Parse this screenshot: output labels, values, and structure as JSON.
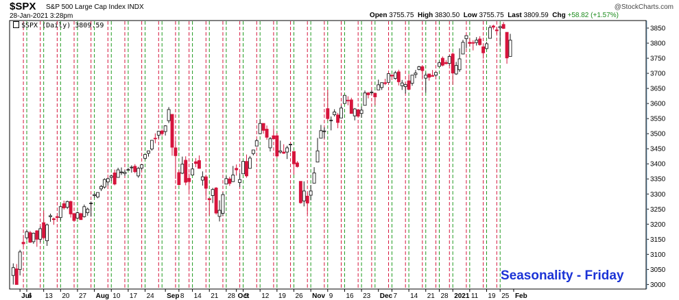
{
  "header": {
    "ticker": "$SPX",
    "name": "S&P 500 Large Cap Index  INDX",
    "date": "28-Jan-2021 3:28pm",
    "branding": "@StockCharts.com",
    "ohlc": {
      "open_label": "Open",
      "open": "3755.75",
      "high_label": "High",
      "high": "3830.50",
      "low_label": "Low",
      "low": "3755.75",
      "last_label": "Last",
      "last": "3809.59",
      "chg_label": "Chg",
      "chg": "+58.82 (+1.57%)"
    }
  },
  "legend": {
    "label": "$SPX (Daily) 3809.59"
  },
  "annotation": "Seasonality - Friday",
  "colors": {
    "up": "#1a1a1a",
    "down": "#d6143c",
    "monday_line": "#1e9a1e",
    "friday_line": "#d6143c",
    "caption": "#1b33d6",
    "price_axis_line": "#8ab4d6"
  },
  "chart_data": {
    "type": "candlestick",
    "title": "$SPX S&P 500 Large Cap Index",
    "series_name": "$SPX (Daily)",
    "ylim": [
      2985,
      3875
    ],
    "y_ticks": [
      3000,
      3050,
      3100,
      3150,
      3200,
      3250,
      3300,
      3350,
      3400,
      3450,
      3500,
      3550,
      3600,
      3650,
      3700,
      3750,
      3800,
      3850
    ],
    "x_ticks": [
      {
        "label": "Jul",
        "date": "2020-07-01",
        "bold": true
      },
      {
        "label": "6",
        "date": "2020-07-06"
      },
      {
        "label": "13",
        "date": "2020-07-13"
      },
      {
        "label": "20",
        "date": "2020-07-20"
      },
      {
        "label": "27",
        "date": "2020-07-27"
      },
      {
        "label": "Aug",
        "date": "2020-08-03",
        "bold": true
      },
      {
        "label": "10",
        "date": "2020-08-10"
      },
      {
        "label": "17",
        "date": "2020-08-17"
      },
      {
        "label": "24",
        "date": "2020-08-24"
      },
      {
        "label": "Sep",
        "date": "2020-09-01",
        "bold": true
      },
      {
        "label": "8",
        "date": "2020-09-08"
      },
      {
        "label": "14",
        "date": "2020-09-14"
      },
      {
        "label": "21",
        "date": "2020-09-21"
      },
      {
        "label": "28",
        "date": "2020-09-28"
      },
      {
        "label": "Oct",
        "date": "2020-10-01",
        "bold": true
      },
      {
        "label": "5",
        "date": "2020-10-05"
      },
      {
        "label": "12",
        "date": "2020-10-12"
      },
      {
        "label": "19",
        "date": "2020-10-19"
      },
      {
        "label": "26",
        "date": "2020-10-26"
      },
      {
        "label": "Nov",
        "date": "2020-11-02",
        "bold": true
      },
      {
        "label": "9",
        "date": "2020-11-09"
      },
      {
        "label": "16",
        "date": "2020-11-16"
      },
      {
        "label": "23",
        "date": "2020-11-23"
      },
      {
        "label": "Dec",
        "date": "2020-12-01",
        "bold": true
      },
      {
        "label": "7",
        "date": "2020-12-07"
      },
      {
        "label": "14",
        "date": "2020-12-14"
      },
      {
        "label": "21",
        "date": "2020-12-21"
      },
      {
        "label": "28",
        "date": "2020-12-28"
      },
      {
        "label": "2021",
        "date": "2021-01-04",
        "bold": true
      },
      {
        "label": "11",
        "date": "2021-01-11"
      },
      {
        "label": "19",
        "date": "2021-01-19"
      },
      {
        "label": "25",
        "date": "2021-01-25"
      },
      {
        "label": "Feb",
        "date": "2021-02-01",
        "bold": true
      }
    ],
    "monday_lines": [
      "2020-07-06",
      "2020-07-13",
      "2020-07-20",
      "2020-07-27",
      "2020-08-03",
      "2020-08-10",
      "2020-08-17",
      "2020-08-24",
      "2020-08-31",
      "2020-09-08",
      "2020-09-14",
      "2020-09-21",
      "2020-09-28",
      "2020-10-05",
      "2020-10-12",
      "2020-10-19",
      "2020-10-26",
      "2020-11-02",
      "2020-11-09",
      "2020-11-16",
      "2020-11-23",
      "2020-11-30",
      "2020-12-07",
      "2020-12-14",
      "2020-12-21",
      "2020-12-28",
      "2021-01-04",
      "2021-01-11",
      "2021-01-19",
      "2021-01-25"
    ],
    "friday_lines": [
      "2020-07-02",
      "2020-07-10",
      "2020-07-17",
      "2020-07-24",
      "2020-07-31",
      "2020-08-07",
      "2020-08-14",
      "2020-08-21",
      "2020-08-28",
      "2020-09-04",
      "2020-09-11",
      "2020-09-18",
      "2020-09-25",
      "2020-10-02",
      "2020-10-09",
      "2020-10-16",
      "2020-10-23",
      "2020-10-30",
      "2020-11-06",
      "2020-11-13",
      "2020-11-20",
      "2020-11-27",
      "2020-12-04",
      "2020-12-11",
      "2020-12-18",
      "2020-12-24",
      "2020-12-31",
      "2021-01-08",
      "2021-01-15",
      "2021-01-22"
    ],
    "candles": [
      [
        "2020-06-29",
        3030,
        3070,
        3000,
        3056
      ],
      [
        "2020-06-30",
        3052,
        3068,
        3000,
        3000
      ],
      [
        "2020-07-01",
        3050,
        3115,
        3030,
        3108
      ],
      [
        "2020-07-02",
        3140,
        3160,
        3125,
        3135
      ],
      [
        "2020-07-06",
        3155,
        3182,
        3148,
        3175
      ],
      [
        "2020-07-07",
        3172,
        3178,
        3138,
        3140
      ],
      [
        "2020-07-08",
        3142,
        3172,
        3135,
        3170
      ],
      [
        "2020-07-09",
        3178,
        3180,
        3125,
        3150
      ],
      [
        "2020-07-10",
        3150,
        3192,
        3140,
        3185
      ],
      [
        "2020-07-13",
        3205,
        3245,
        3148,
        3155
      ],
      [
        "2020-07-14",
        3145,
        3202,
        3128,
        3198
      ],
      [
        "2020-07-15",
        3225,
        3235,
        3208,
        3228
      ],
      [
        "2020-07-16",
        3218,
        3222,
        3198,
        3215
      ],
      [
        "2020-07-17",
        3225,
        3230,
        3210,
        3222
      ],
      [
        "2020-07-20",
        3222,
        3262,
        3212,
        3258
      ],
      [
        "2020-07-21",
        3268,
        3278,
        3248,
        3254
      ],
      [
        "2020-07-22",
        3256,
        3278,
        3250,
        3275
      ],
      [
        "2020-07-23",
        3275,
        3278,
        3222,
        3234
      ],
      [
        "2020-07-24",
        3235,
        3238,
        3212,
        3212
      ],
      [
        "2020-07-27",
        3220,
        3242,
        3218,
        3238
      ],
      [
        "2020-07-28",
        3235,
        3238,
        3215,
        3215
      ],
      [
        "2020-07-29",
        3225,
        3265,
        3222,
        3258
      ],
      [
        "2020-07-30",
        3238,
        3255,
        3228,
        3250
      ],
      [
        "2020-07-31",
        3270,
        3275,
        3225,
        3270
      ],
      [
        "2020-08-03",
        3295,
        3302,
        3288,
        3298
      ],
      [
        "2020-08-04",
        3290,
        3306,
        3286,
        3305
      ],
      [
        "2020-08-05",
        3317,
        3330,
        3310,
        3325
      ],
      [
        "2020-08-06",
        3323,
        3352,
        3318,
        3348
      ],
      [
        "2020-08-07",
        3340,
        3354,
        3328,
        3351
      ],
      [
        "2020-08-10",
        3355,
        3364,
        3343,
        3360
      ],
      [
        "2020-08-11",
        3370,
        3381,
        3329,
        3333
      ],
      [
        "2020-08-12",
        3355,
        3387,
        3355,
        3380
      ],
      [
        "2020-08-13",
        3372,
        3388,
        3363,
        3373
      ],
      [
        "2020-08-14",
        3368,
        3380,
        3360,
        3372
      ],
      [
        "2020-08-17",
        3380,
        3387,
        3379,
        3381
      ],
      [
        "2020-08-18",
        3387,
        3395,
        3371,
        3389
      ],
      [
        "2020-08-19",
        3392,
        3399,
        3369,
        3374
      ],
      [
        "2020-08-20",
        3360,
        3390,
        3354,
        3385
      ],
      [
        "2020-08-21",
        3386,
        3399,
        3379,
        3397
      ],
      [
        "2020-08-24",
        3418,
        3432,
        3414,
        3431
      ],
      [
        "2020-08-25",
        3435,
        3444,
        3424,
        3443
      ],
      [
        "2020-08-26",
        3449,
        3479,
        3444,
        3478
      ],
      [
        "2020-08-27",
        3485,
        3501,
        3468,
        3484
      ],
      [
        "2020-08-28",
        3495,
        3509,
        3484,
        3508
      ],
      [
        "2020-08-31",
        3509,
        3514,
        3493,
        3500
      ],
      [
        "2020-09-01",
        3507,
        3528,
        3494,
        3526
      ],
      [
        "2020-09-02",
        3543,
        3588,
        3535,
        3580
      ],
      [
        "2020-09-03",
        3564,
        3564,
        3427,
        3455
      ],
      [
        "2020-09-04",
        3453,
        3479,
        3350,
        3427
      ],
      [
        "2020-09-08",
        3371,
        3379,
        3329,
        3331
      ],
      [
        "2020-09-09",
        3369,
        3424,
        3366,
        3399
      ],
      [
        "2020-09-10",
        3412,
        3425,
        3329,
        3339
      ],
      [
        "2020-09-11",
        3352,
        3368,
        3310,
        3341
      ],
      [
        "2020-09-14",
        3363,
        3403,
        3363,
        3383
      ],
      [
        "2020-09-15",
        3407,
        3419,
        3389,
        3401
      ],
      [
        "2020-09-16",
        3411,
        3428,
        3384,
        3385
      ],
      [
        "2020-09-17",
        3346,
        3375,
        3328,
        3357
      ],
      [
        "2020-09-18",
        3357,
        3362,
        3292,
        3319
      ],
      [
        "2020-09-21",
        3285,
        3285,
        3229,
        3281
      ],
      [
        "2020-09-22",
        3295,
        3320,
        3270,
        3315
      ],
      [
        "2020-09-23",
        3320,
        3323,
        3232,
        3237
      ],
      [
        "2020-09-24",
        3226,
        3279,
        3209,
        3246
      ],
      [
        "2020-09-25",
        3236,
        3306,
        3228,
        3298
      ],
      [
        "2020-09-28",
        3333,
        3360,
        3332,
        3351
      ],
      [
        "2020-09-29",
        3350,
        3357,
        3327,
        3335
      ],
      [
        "2020-09-30",
        3341,
        3393,
        3340,
        3363
      ],
      [
        "2020-10-01",
        3385,
        3398,
        3361,
        3380
      ],
      [
        "2020-10-02",
        3338,
        3370,
        3323,
        3348
      ],
      [
        "2020-10-05",
        3367,
        3409,
        3367,
        3408
      ],
      [
        "2020-10-06",
        3408,
        3431,
        3354,
        3360
      ],
      [
        "2020-10-07",
        3385,
        3426,
        3384,
        3419
      ],
      [
        "2020-10-08",
        3434,
        3447,
        3428,
        3446
      ],
      [
        "2020-10-09",
        3459,
        3482,
        3458,
        3477
      ],
      [
        "2020-10-12",
        3500,
        3549,
        3499,
        3534
      ],
      [
        "2020-10-13",
        3534,
        3534,
        3500,
        3511
      ],
      [
        "2020-10-14",
        3515,
        3527,
        3480,
        3488
      ],
      [
        "2020-10-15",
        3453,
        3489,
        3441,
        3483
      ],
      [
        "2020-10-16",
        3493,
        3516,
        3483,
        3483
      ],
      [
        "2020-10-19",
        3493,
        3502,
        3419,
        3426
      ],
      [
        "2020-10-20",
        3439,
        3477,
        3434,
        3443
      ],
      [
        "2020-10-21",
        3439,
        3465,
        3433,
        3435
      ],
      [
        "2020-10-22",
        3439,
        3460,
        3416,
        3453
      ],
      [
        "2020-10-23",
        3464,
        3466,
        3440,
        3465
      ],
      [
        "2020-10-26",
        3441,
        3441,
        3364,
        3400
      ],
      [
        "2020-10-27",
        3403,
        3409,
        3388,
        3391
      ],
      [
        "2020-10-28",
        3342,
        3342,
        3268,
        3271
      ],
      [
        "2020-10-29",
        3277,
        3342,
        3259,
        3310
      ],
      [
        "2020-10-30",
        3293,
        3305,
        3233,
        3270
      ],
      [
        "2020-11-02",
        3296,
        3330,
        3279,
        3310
      ],
      [
        "2020-11-03",
        3336,
        3389,
        3336,
        3370
      ],
      [
        "2020-11-04",
        3406,
        3486,
        3405,
        3443
      ],
      [
        "2020-11-05",
        3485,
        3529,
        3485,
        3510
      ],
      [
        "2020-11-06",
        3508,
        3521,
        3484,
        3509
      ],
      [
        "2020-11-09",
        3583,
        3646,
        3543,
        3550
      ],
      [
        "2020-11-10",
        3543,
        3557,
        3511,
        3545
      ],
      [
        "2020-11-11",
        3563,
        3581,
        3557,
        3572
      ],
      [
        "2020-11-12",
        3562,
        3569,
        3518,
        3537
      ],
      [
        "2020-11-13",
        3552,
        3593,
        3552,
        3585
      ],
      [
        "2020-11-16",
        3600,
        3628,
        3600,
        3627
      ],
      [
        "2020-11-17",
        3611,
        3624,
        3594,
        3610
      ],
      [
        "2020-11-18",
        3612,
        3619,
        3567,
        3567
      ],
      [
        "2020-11-19",
        3559,
        3585,
        3544,
        3582
      ],
      [
        "2020-11-20",
        3579,
        3582,
        3556,
        3558
      ],
      [
        "2020-11-23",
        3567,
        3590,
        3553,
        3578
      ],
      [
        "2020-11-24",
        3594,
        3643,
        3594,
        3635
      ],
      [
        "2020-11-25",
        3635,
        3638,
        3617,
        3629
      ],
      [
        "2020-11-27",
        3638,
        3644,
        3629,
        3638
      ],
      [
        "2020-11-30",
        3634,
        3634,
        3594,
        3622
      ],
      [
        "2020-12-01",
        3645,
        3679,
        3645,
        3662
      ],
      [
        "2020-12-02",
        3653,
        3670,
        3645,
        3669
      ],
      [
        "2020-12-03",
        3669,
        3682,
        3661,
        3666
      ],
      [
        "2020-12-04",
        3670,
        3699,
        3670,
        3699
      ],
      [
        "2020-12-07",
        3694,
        3697,
        3678,
        3691
      ],
      [
        "2020-12-08",
        3683,
        3708,
        3679,
        3702
      ],
      [
        "2020-12-09",
        3705,
        3712,
        3660,
        3672
      ],
      [
        "2020-12-10",
        3659,
        3678,
        3645,
        3668
      ],
      [
        "2020-12-11",
        3656,
        3665,
        3633,
        3663
      ],
      [
        "2020-12-14",
        3675,
        3697,
        3645,
        3647
      ],
      [
        "2020-12-15",
        3667,
        3695,
        3659,
        3694
      ],
      [
        "2020-12-16",
        3696,
        3711,
        3684,
        3701
      ],
      [
        "2020-12-17",
        3713,
        3725,
        3710,
        3722
      ],
      [
        "2020-12-18",
        3722,
        3726,
        3685,
        3709
      ],
      [
        "2020-12-21",
        3684,
        3702,
        3636,
        3694
      ],
      [
        "2020-12-22",
        3698,
        3698,
        3676,
        3687
      ],
      [
        "2020-12-23",
        3693,
        3711,
        3689,
        3690
      ],
      [
        "2020-12-24",
        3694,
        3703,
        3689,
        3703
      ],
      [
        "2020-12-28",
        3723,
        3740,
        3723,
        3735
      ],
      [
        "2020-12-29",
        3750,
        3756,
        3723,
        3727
      ],
      [
        "2020-12-30",
        3736,
        3744,
        3730,
        3732
      ],
      [
        "2020-12-31",
        3733,
        3760,
        3726,
        3756
      ],
      [
        "2021-01-04",
        3764,
        3769,
        3662,
        3701
      ],
      [
        "2021-01-05",
        3698,
        3738,
        3695,
        3726
      ],
      [
        "2021-01-06",
        3712,
        3783,
        3705,
        3748
      ],
      [
        "2021-01-07",
        3764,
        3811,
        3764,
        3803
      ],
      [
        "2021-01-08",
        3815,
        3826,
        3783,
        3825
      ],
      [
        "2021-01-11",
        3803,
        3817,
        3789,
        3799
      ],
      [
        "2021-01-12",
        3802,
        3810,
        3776,
        3801
      ],
      [
        "2021-01-13",
        3802,
        3820,
        3792,
        3810
      ],
      [
        "2021-01-14",
        3814,
        3823,
        3792,
        3795
      ],
      [
        "2021-01-15",
        3788,
        3789,
        3749,
        3768
      ],
      [
        "2021-01-19",
        3782,
        3804,
        3780,
        3798
      ],
      [
        "2021-01-20",
        3816,
        3859,
        3816,
        3852
      ],
      [
        "2021-01-21",
        3857,
        3861,
        3845,
        3853
      ],
      [
        "2021-01-22",
        3844,
        3852,
        3830,
        3841
      ],
      [
        "2021-01-25",
        3851,
        3860,
        3794,
        3855
      ],
      [
        "2021-01-26",
        3862,
        3870,
        3847,
        3849
      ],
      [
        "2021-01-27",
        3836,
        3836,
        3732,
        3751
      ],
      [
        "2021-01-28",
        3756,
        3831,
        3756,
        3810
      ]
    ]
  }
}
